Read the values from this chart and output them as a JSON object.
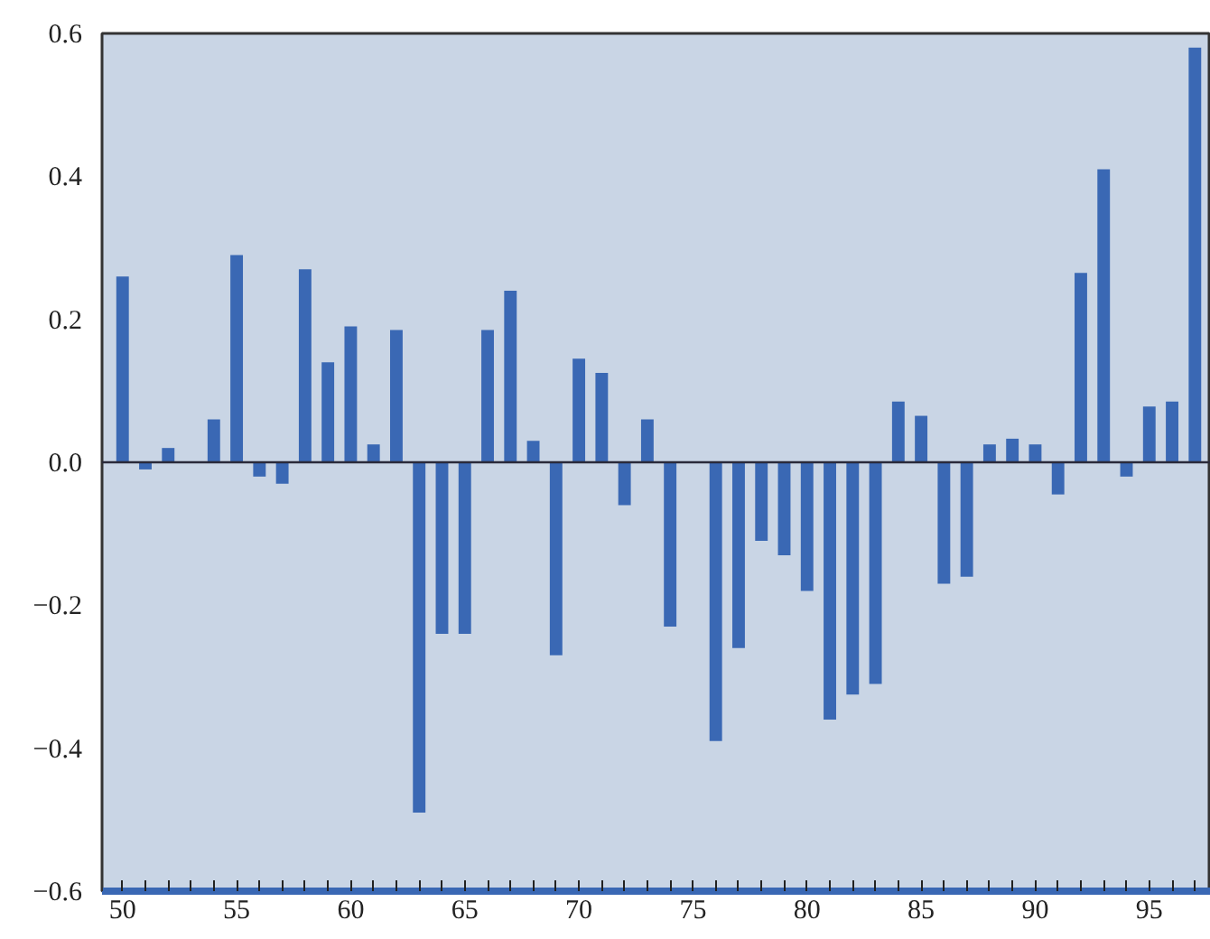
{
  "chart_data": {
    "type": "bar",
    "x": [
      50,
      51,
      52,
      53,
      54,
      55,
      56,
      57,
      58,
      59,
      60,
      61,
      62,
      63,
      64,
      65,
      66,
      67,
      68,
      69,
      70,
      71,
      72,
      73,
      74,
      75,
      76,
      77,
      78,
      79,
      80,
      81,
      82,
      83,
      84,
      85,
      86,
      87,
      88,
      89,
      90,
      91,
      92,
      93,
      94,
      95,
      96,
      97
    ],
    "values": [
      0.26,
      -0.01,
      0.02,
      0,
      0.06,
      0.29,
      -0.02,
      -0.03,
      0.27,
      0.14,
      0.19,
      0.025,
      0.185,
      -0.49,
      -0.24,
      -0.24,
      0.185,
      0.24,
      0.03,
      -0.27,
      0.145,
      0.125,
      -0.06,
      0.06,
      -0.23,
      0,
      -0.39,
      -0.26,
      -0.11,
      -0.13,
      -0.18,
      -0.36,
      -0.325,
      -0.31,
      0.085,
      0.065,
      -0.17,
      -0.16,
      0.025,
      0.033,
      0.025,
      -0.045,
      0.265,
      0.41,
      -0.02,
      0.078,
      0.085,
      0.58
    ],
    "color": "#3a68b4",
    "xlim": [
      49.1,
      97.7
    ],
    "xticks": [
      50,
      55,
      60,
      65,
      70,
      75,
      80,
      85,
      90,
      95
    ],
    "ylim": [
      -0.6,
      0.6
    ],
    "yticks": [
      {
        "value": -0.6,
        "label": "−0.6"
      },
      {
        "value": -0.4,
        "label": "−0.4"
      },
      {
        "value": -0.2,
        "label": "−0.2"
      },
      {
        "value": 0,
        "label": "0.0"
      },
      0.2,
      0.4,
      0.6
    ],
    "ref_lines": [
      {
        "axis": "y",
        "value": 0,
        "color": "#2a2a3a"
      }
    ],
    "grid": false
  }
}
